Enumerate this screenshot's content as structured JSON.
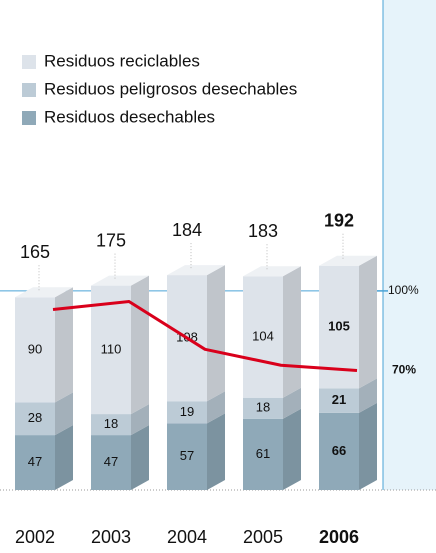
{
  "chart_data": {
    "type": "stacked-bar-3d",
    "categories": [
      "2002",
      "2003",
      "2004",
      "2005",
      "2006"
    ],
    "series": [
      {
        "name": "Residuos desechables",
        "color": "#8fa9b8",
        "values": [
          47,
          47,
          57,
          61,
          66
        ]
      },
      {
        "name": "Residuos peligrosos desechables",
        "color": "#bccbd6",
        "values": [
          28,
          18,
          19,
          18,
          21
        ]
      },
      {
        "name": "Residuos reciclables",
        "color": "#dde3ea",
        "values": [
          90,
          110,
          108,
          104,
          105
        ]
      }
    ],
    "totals": [
      165,
      175,
      184,
      183,
      192
    ],
    "legend_order": [
      2,
      1,
      0
    ],
    "ylim": [
      0,
      250
    ],
    "line": {
      "color": "#d9001b",
      "axis": "y2",
      "values": [
        93,
        96,
        78,
        72,
        70
      ]
    },
    "y2lim": [
      25,
      135
    ],
    "y2ticks": [
      {
        "value": 100,
        "label": "100%"
      },
      {
        "value": 70,
        "label": "70%"
      }
    ]
  }
}
